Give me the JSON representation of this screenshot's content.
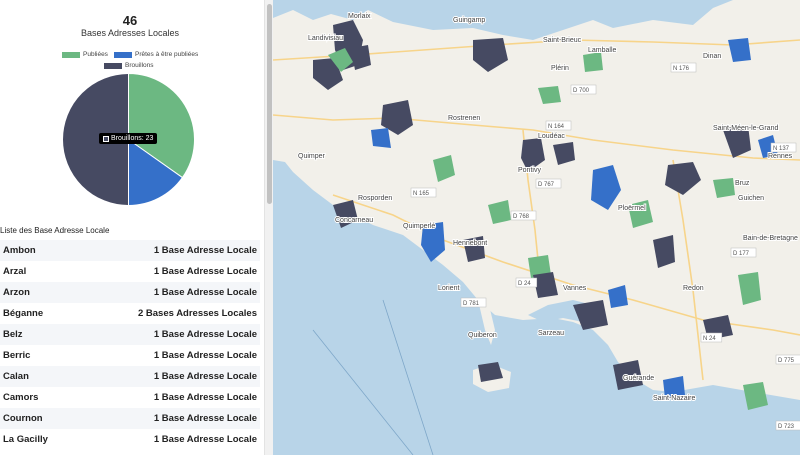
{
  "stats": {
    "count": "46",
    "subtitle": "Bases Adresses Locales"
  },
  "legend": [
    {
      "label": "Publiées",
      "color": "#6cb882"
    },
    {
      "label": "Prêtes à être publiées",
      "color": "#3570c9"
    },
    {
      "label": "Brouillons",
      "color": "#464a62"
    }
  ],
  "chart_data": {
    "type": "pie",
    "title": "",
    "slices": [
      {
        "label": "Publiées",
        "value": 16,
        "color": "#6cb882"
      },
      {
        "label": "Prêtes à être publiées",
        "value": 7,
        "color": "#3570c9"
      },
      {
        "label": "Brouillons",
        "value": 23,
        "color": "#464a62"
      }
    ],
    "tooltip": "Brouillons: 23"
  },
  "list": {
    "title": "Liste des Base Adresse Locale",
    "rows": [
      {
        "name": "Ambon",
        "count": "1 Base Adresse Locale"
      },
      {
        "name": "Arzal",
        "count": "1 Base Adresse Locale"
      },
      {
        "name": "Arzon",
        "count": "1 Base Adresse Locale"
      },
      {
        "name": "Béganne",
        "count": "2 Bases Adresses Locales"
      },
      {
        "name": "Belz",
        "count": "1 Base Adresse Locale"
      },
      {
        "name": "Berric",
        "count": "1 Base Adresse Locale"
      },
      {
        "name": "Calan",
        "count": "1 Base Adresse Locale"
      },
      {
        "name": "Camors",
        "count": "1 Base Adresse Locale"
      },
      {
        "name": "Cournon",
        "count": "1 Base Adresse Locale"
      },
      {
        "name": "La Gacilly",
        "count": "1 Base Adresse Locale"
      }
    ]
  },
  "map": {
    "labels": [
      "Morlaix",
      "Landivisiau",
      "Guingamp",
      "Saint-Brieuc",
      "Lamballe",
      "Dinan",
      "Plérin",
      "Rostrenen",
      "Loudéac",
      "Pontivy",
      "Quimper",
      "Concarneau",
      "Quimperlé",
      "Hennebont",
      "Lorient",
      "Vannes",
      "Ploërmel",
      "Redon",
      "Rennes",
      "Bruz",
      "Saint-Nazaire",
      "Guérande",
      "Quiberon",
      "Bain-de-Bretagne",
      "Guichen",
      "Saint-Méen-le-Grand",
      "Rosporden",
      "Sarzeau"
    ],
    "roads": [
      "N 164",
      "N 176",
      "N 165",
      "D 700",
      "D 767",
      "D 768",
      "D 24",
      "N 24",
      "N 137",
      "D 177",
      "D 775",
      "D 723",
      "D 781"
    ]
  }
}
